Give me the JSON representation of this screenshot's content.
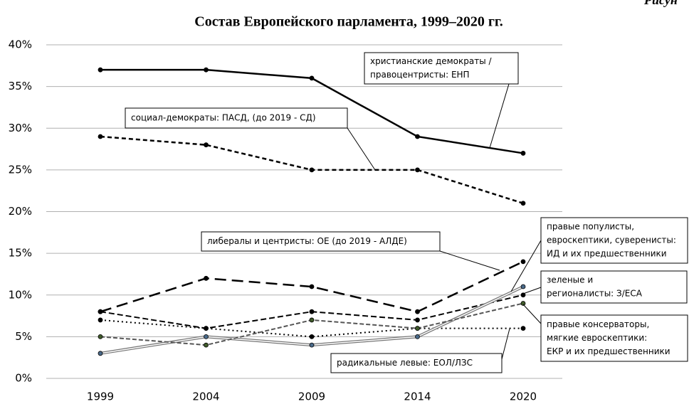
{
  "chart_data": {
    "type": "line",
    "title": "Состав Европейского парламента, 1999–2020 гг.",
    "corner_label": "Рисун",
    "categories": [
      "1999",
      "2004",
      "2009",
      "2014",
      "2020"
    ],
    "ylim": [
      0,
      40
    ],
    "yticks": [
      {
        "value": 0,
        "label": "0%"
      },
      {
        "value": 5,
        "label": "5%"
      },
      {
        "value": 10,
        "label": "10%"
      },
      {
        "value": 15,
        "label": "15%"
      },
      {
        "value": 20,
        "label": "20%"
      },
      {
        "value": 25,
        "label": "25%"
      },
      {
        "value": 30,
        "label": "30%"
      },
      {
        "value": 35,
        "label": "35%"
      },
      {
        "value": 40,
        "label": "40%"
      }
    ],
    "grid": true,
    "series": [
      {
        "color": "#000000",
        "dash": "none",
        "width": 2.5,
        "values": [
          37,
          37,
          36,
          29,
          27
        ]
      },
      {
        "color": "#000000",
        "dash": "6 4",
        "width": 2.5,
        "values": [
          29,
          28,
          25,
          25,
          21
        ]
      },
      {
        "color": "#000000",
        "dash": "16 8",
        "width": 2.5,
        "values": [
          8,
          12,
          11,
          8,
          14
        ]
      },
      {
        "color": "#000000",
        "dash": "8 4",
        "width": 2,
        "values": [
          8,
          6,
          8,
          7,
          10
        ]
      },
      {
        "color": "#000000",
        "dash": "2 4",
        "width": 2,
        "values": [
          7,
          6,
          5,
          6,
          6
        ]
      },
      {
        "color": "#777777",
        "dash": "double",
        "width": 4,
        "marker": "#4a6a8a",
        "values": [
          3,
          5,
          4,
          5,
          11
        ]
      },
      {
        "color": "#555555",
        "dash": "6 3",
        "width": 2,
        "marker": "#3f5a2a",
        "values": [
          5,
          4,
          7,
          6,
          9
        ]
      }
    ],
    "annotations": [
      {
        "lines": [
          "христианские демократы /",
          "правоцентристы: ЕНП"
        ]
      },
      {
        "lines": [
          "социал-демократы: ПАСД, (до 2019 - СД)"
        ]
      },
      {
        "lines": [
          "либералы и центристы: ОЕ (до 2019 - АЛДЕ)"
        ]
      },
      {
        "lines": [
          "правые популисты,",
          "евроскептики, суверенисты:",
          "ИД и их предшественники"
        ]
      },
      {
        "lines": [
          "зеленые и",
          "регионалисты: З/ЕСА"
        ]
      },
      {
        "lines": [
          "правые консерваторы,",
          "мягкие евроскептики:",
          "ЕКР и их предшественники"
        ]
      },
      {
        "lines": [
          "радикальные левые: ЕОЛ/ЛЗС"
        ]
      }
    ]
  }
}
